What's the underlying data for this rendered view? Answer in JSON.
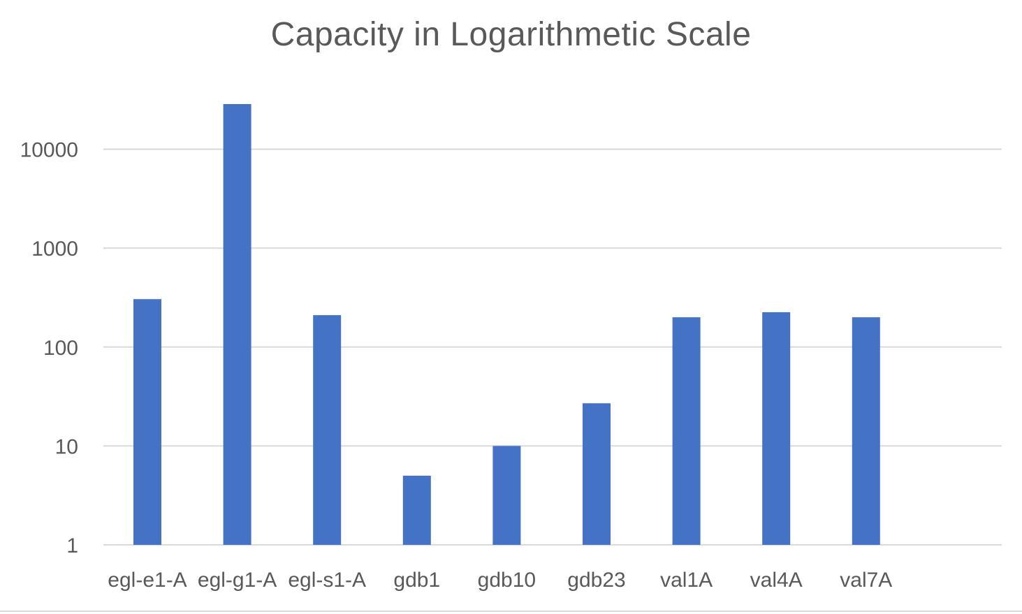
{
  "chart_data": {
    "type": "bar",
    "title": "Capacity in Logarithmetic Scale",
    "xlabel": "",
    "ylabel": "",
    "y_scale": "log",
    "ylim": [
      1,
      30000
    ],
    "y_ticks": [
      1,
      10,
      100,
      1000,
      10000
    ],
    "y_tick_labels": [
      "1",
      "10",
      "100",
      "1000",
      "10000"
    ],
    "grid": true,
    "legend": "none",
    "categories": [
      "egl-e1-A",
      "egl-g1-A",
      "egl-s1-A",
      "gdb1",
      "gdb10",
      "gdb23",
      "val1A",
      "val4A",
      "val7A"
    ],
    "values": [
      305,
      28600,
      210,
      5,
      10,
      27,
      200,
      225,
      200
    ],
    "colors": {
      "bar": "#4472C4",
      "grid": "#d9d9d9",
      "tick_label": "#595959",
      "title": "#595959"
    }
  }
}
